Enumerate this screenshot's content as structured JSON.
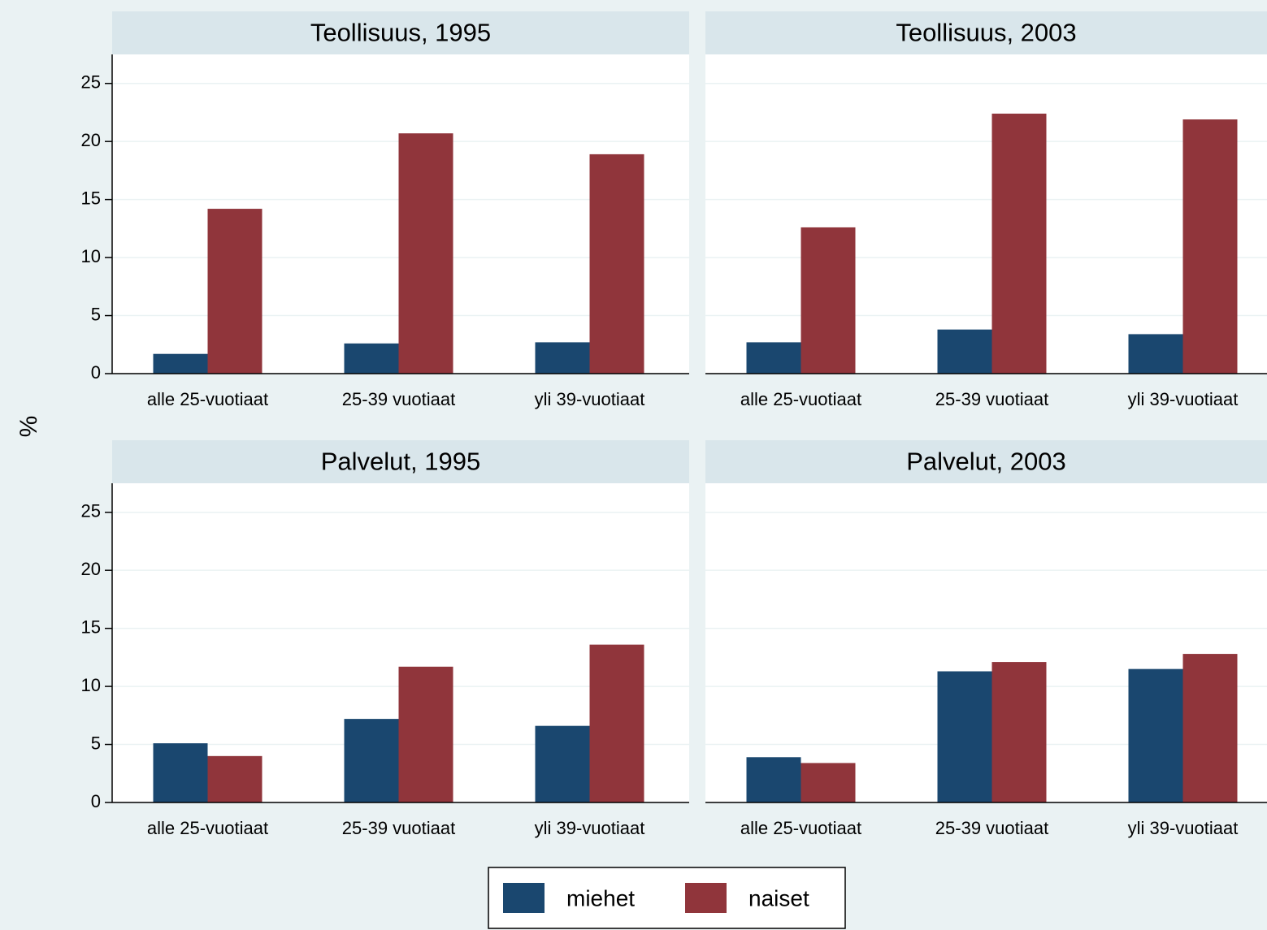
{
  "chart_data": [
    {
      "type": "bar",
      "title": "Teollisuus, 1995",
      "ylabel": "%",
      "categories": [
        "alle 25-vuotiaat",
        "25-39 vuotiaat",
        "yli 39-vuotiaat"
      ],
      "series": [
        {
          "name": "miehet",
          "color": "#1a476f",
          "values": [
            1.7,
            2.6,
            2.7
          ]
        },
        {
          "name": "naiset",
          "color": "#90353b",
          "values": [
            14.2,
            20.7,
            18.9
          ]
        }
      ],
      "ylim": [
        0,
        27.5
      ],
      "yticks": [
        0,
        5,
        10,
        15,
        20,
        25
      ],
      "grid": true
    },
    {
      "type": "bar",
      "title": "Teollisuus, 2003",
      "categories": [
        "alle 25-vuotiaat",
        "25-39 vuotiaat",
        "yli 39-vuotiaat"
      ],
      "series": [
        {
          "name": "miehet",
          "color": "#1a476f",
          "values": [
            2.7,
            3.8,
            3.4
          ]
        },
        {
          "name": "naiset",
          "color": "#90353b",
          "values": [
            12.6,
            22.4,
            21.9
          ]
        }
      ],
      "ylim": [
        0,
        27.5
      ],
      "yticks": [
        0,
        5,
        10,
        15,
        20,
        25
      ],
      "grid": true
    },
    {
      "type": "bar",
      "title": "Palvelut, 1995",
      "categories": [
        "alle 25-vuotiaat",
        "25-39 vuotiaat",
        "yli 39-vuotiaat"
      ],
      "series": [
        {
          "name": "miehet",
          "color": "#1a476f",
          "values": [
            5.1,
            7.2,
            6.6
          ]
        },
        {
          "name": "naiset",
          "color": "#90353b",
          "values": [
            4.0,
            11.7,
            13.6
          ]
        }
      ],
      "ylim": [
        0,
        27.5
      ],
      "yticks": [
        0,
        5,
        10,
        15,
        20,
        25
      ],
      "grid": true
    },
    {
      "type": "bar",
      "title": "Palvelut, 2003",
      "categories": [
        "alle 25-vuotiaat",
        "25-39 vuotiaat",
        "yli 39-vuotiaat"
      ],
      "series": [
        {
          "name": "miehet",
          "color": "#1a476f",
          "values": [
            3.9,
            11.3,
            11.5
          ]
        },
        {
          "name": "naiset",
          "color": "#90353b",
          "values": [
            3.4,
            12.1,
            12.8
          ]
        }
      ],
      "ylim": [
        0,
        27.5
      ],
      "yticks": [
        0,
        5,
        10,
        15,
        20,
        25
      ],
      "grid": true
    }
  ]
}
